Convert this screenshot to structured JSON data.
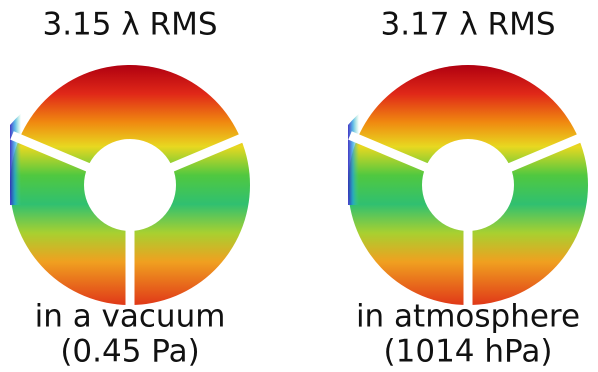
{
  "panels": [
    {
      "title": "3.15 λ RMS",
      "caption": [
        "in a vacuum",
        "(0.45 Pa)"
      ]
    },
    {
      "title": "3.17 λ RMS",
      "caption": [
        "in atmosphere",
        "(1014 hPa)"
      ]
    }
  ]
}
